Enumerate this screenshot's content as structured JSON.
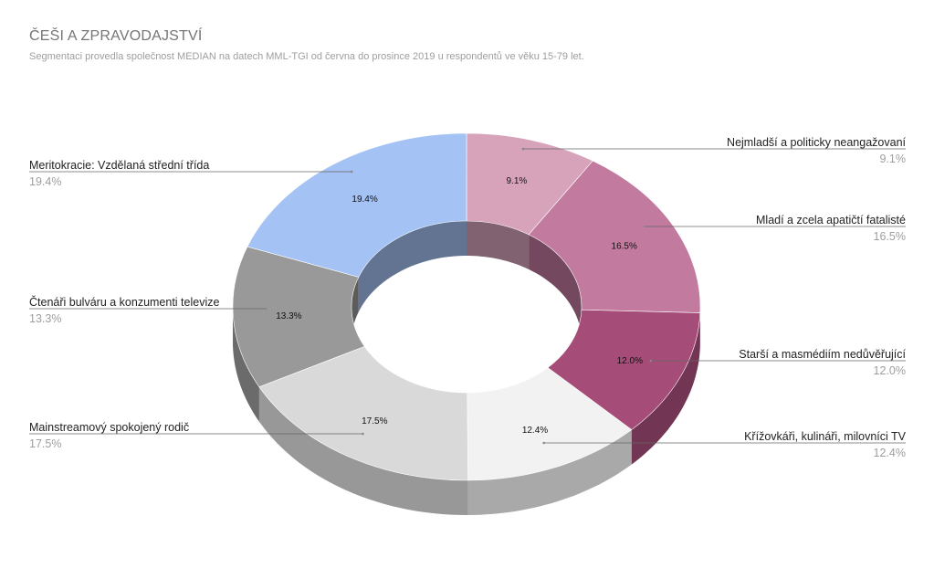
{
  "chart_data": {
    "type": "pie",
    "variant": "donut-3d",
    "title": "ČEŠI A ZPRAVODAJSTVÍ",
    "subtitle": "Segmentaci provedla společnost MEDIAN na datech MML-TGI od června do prosince 2019 u respondentů ve věku 15-79 let.",
    "legend": "callout-labels",
    "slices": [
      {
        "label": "Nejmladší a politicky neangažovaní",
        "value": 9.1,
        "display": "9.1%",
        "color": "#d6a3bb"
      },
      {
        "label": "Mladí a zcela apatičtí fatalisté",
        "value": 16.5,
        "display": "16.5%",
        "color": "#c27a9e"
      },
      {
        "label": "Starší a masmédiím nedůvěřující",
        "value": 12.0,
        "display": "12.0%",
        "color": "#a54c78"
      },
      {
        "label": "Křížovkáři, kulináři, milovníci TV",
        "value": 12.4,
        "display": "12.4%",
        "color": "#f2f2f2"
      },
      {
        "label": "Mainstreamový spokojený rodič",
        "value": 17.5,
        "display": "17.5%",
        "color": "#d9d9d9"
      },
      {
        "label": "Čtenáři bulváru a konzumenti televize",
        "value": 13.3,
        "display": "13.3%",
        "color": "#999999"
      },
      {
        "label": "Meritokracie: Vzdělaná střední třída",
        "value": 19.4,
        "display": "19.4%",
        "color": "#a4c2f4"
      }
    ]
  }
}
